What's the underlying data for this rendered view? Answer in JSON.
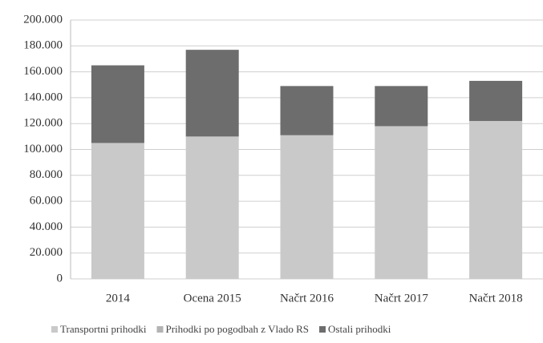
{
  "chart_data": {
    "type": "stacked_bar",
    "categories": [
      "2014",
      "Ocena 2015",
      "Načrt  2016",
      "Načrt 2017",
      "Načrt 2018"
    ],
    "series": [
      {
        "name": "Transportni prihodki",
        "color": "#c9c9c9",
        "values": [
          105000,
          110000,
          111000,
          118000,
          122000
        ]
      },
      {
        "name": "Prihodki po pogodbah z Vlado RS",
        "color": "#b3b3b3",
        "values": [
          0,
          0,
          0,
          0,
          0
        ]
      },
      {
        "name": "Ostali prihodki",
        "color": "#6d6d6d",
        "values": [
          60000,
          67000,
          38000,
          31000,
          31000
        ]
      }
    ],
    "ylim": [
      0,
      200000
    ],
    "yticks": [
      0,
      {
        "value": 20000,
        "label": "20.000"
      },
      {
        "value": 40000,
        "label": "40.000"
      },
      {
        "value": 60000,
        "label": "60.000"
      },
      {
        "value": 80000,
        "label": "80.000"
      },
      {
        "value": 100000,
        "label": "100.000"
      },
      {
        "value": 120000,
        "label": "120.000"
      },
      {
        "value": 140000,
        "label": "140.000"
      },
      {
        "value": 160000,
        "label": "160.000"
      },
      {
        "value": 180000,
        "label": "180.000"
      },
      {
        "value": 200000,
        "label": "200.000"
      }
    ],
    "grid": true,
    "legend": "bottom"
  }
}
